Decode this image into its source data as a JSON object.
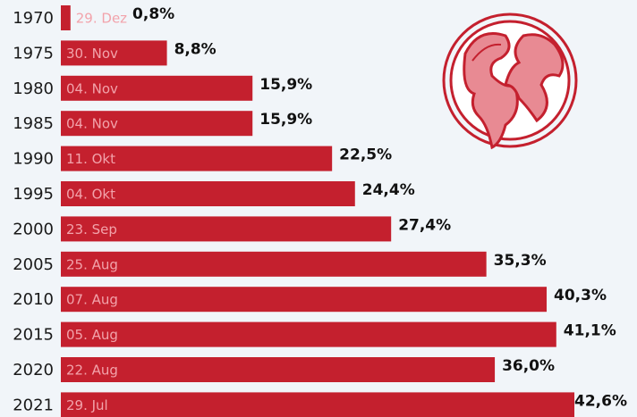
{
  "chart_data": {
    "type": "bar",
    "orientation": "horizontal",
    "categories": [
      "1970",
      "1975",
      "1980",
      "1985",
      "1990",
      "1995",
      "2000",
      "2005",
      "2010",
      "2015",
      "2020",
      "2021"
    ],
    "values": [
      0.8,
      8.8,
      15.9,
      15.9,
      22.5,
      24.4,
      27.4,
      35.3,
      40.3,
      41.1,
      36.0,
      42.6
    ],
    "value_labels": [
      "0,8%",
      "8,8%",
      "15,9%",
      "15,9%",
      "22,5%",
      "24,4%",
      "27,4%",
      "35,3%",
      "40,3%",
      "41,1%",
      "36,0%",
      "42,6%"
    ],
    "dates": [
      "29. Dez",
      "30. Nov",
      "04. Nov",
      "04. Nov",
      "11. Okt",
      "04. Okt",
      "23. Sep",
      "25. Aug",
      "07. Aug",
      "05. Aug",
      "22. Aug",
      "29. Jul"
    ],
    "color": "#c4202e"
  }
}
